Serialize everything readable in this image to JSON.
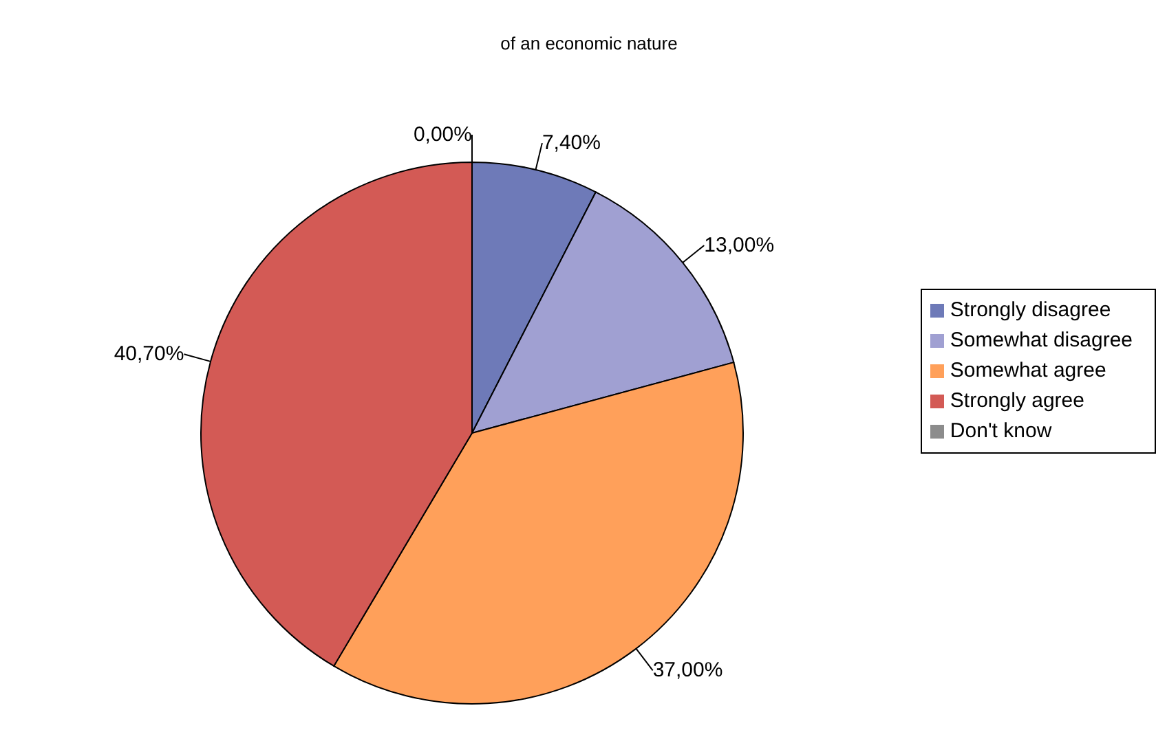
{
  "chart_data": {
    "type": "pie",
    "title": "of an economic nature",
    "categories": [
      "Strongly disagree",
      "Somewhat disagree",
      "Somewhat agree",
      "Strongly agree",
      "Don't know"
    ],
    "values": [
      7.4,
      13.0,
      37.0,
      40.7,
      0.0
    ],
    "value_labels": [
      "7,40%",
      "13,00%",
      "37,00%",
      "40,70%",
      "0,00%"
    ],
    "colors": [
      "#6e7ab8",
      "#a0a0d2",
      "#ffa05a",
      "#d35a55",
      "#8c8c8c"
    ],
    "legend": "right"
  }
}
